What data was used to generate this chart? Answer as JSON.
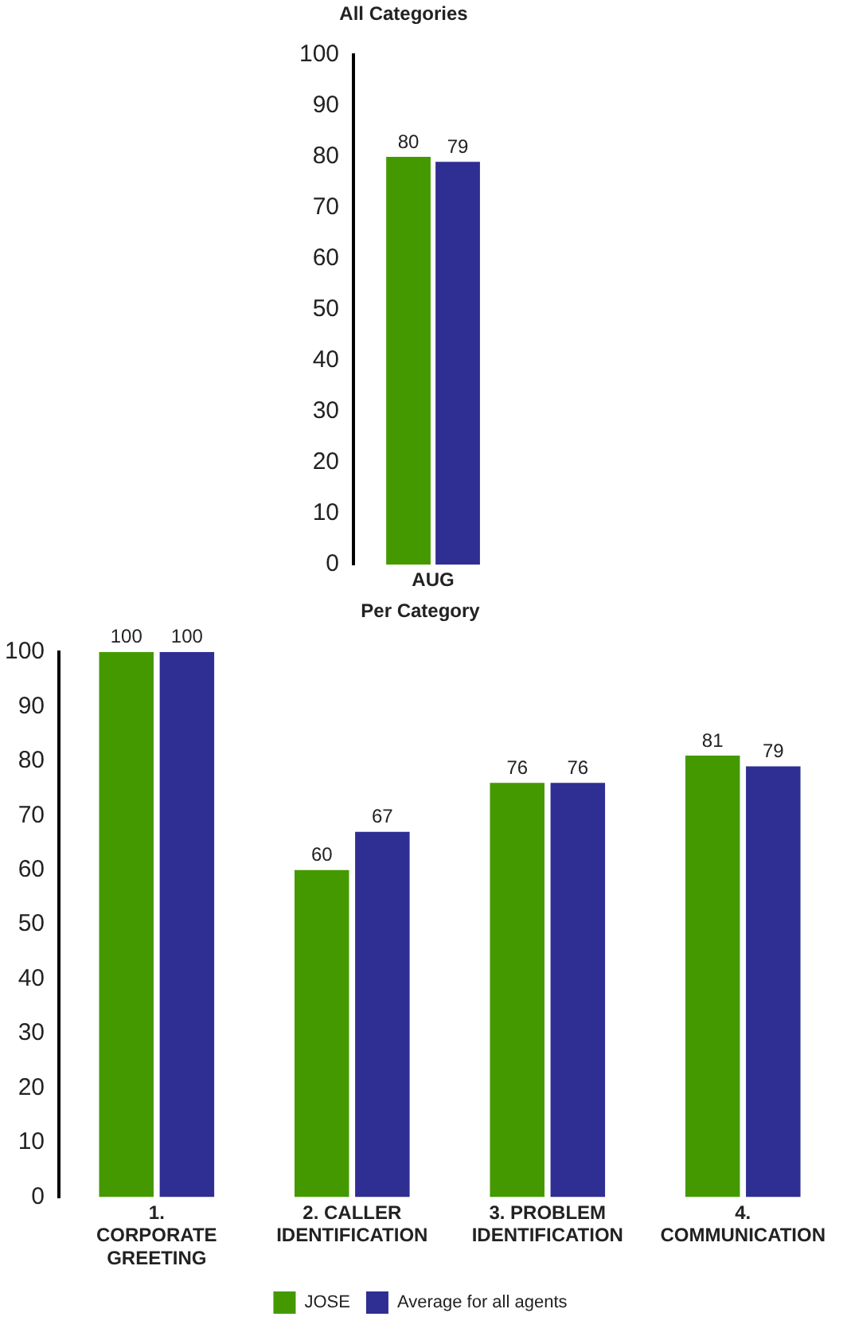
{
  "chart_data": [
    {
      "type": "bar",
      "title": "All Categories",
      "categories": [
        "AUG"
      ],
      "series": [
        {
          "color": "#449900",
          "values": [
            80
          ]
        },
        {
          "color": "#2e2e93",
          "values": [
            79
          ]
        }
      ],
      "ylim": [
        0,
        100
      ],
      "yticks": [
        0,
        10,
        20,
        30,
        40,
        50,
        60,
        70,
        80,
        90,
        100
      ],
      "grid": false,
      "legend": false,
      "data_labels": true
    },
    {
      "type": "bar",
      "title": "Per Category",
      "categories": [
        "1. CORPORATE GREETING",
        "2. CALLER IDENTIFICATION",
        "3. PROBLEM IDENTIFICATION",
        "4. COMMUNICATION"
      ],
      "series": [
        {
          "name": "JOSE",
          "color": "#449900",
          "values": [
            100,
            60,
            76,
            81
          ]
        },
        {
          "name": "Average for all agents",
          "color": "#2e2e93",
          "values": [
            100,
            67,
            76,
            79
          ]
        }
      ],
      "ylim": [
        0,
        100
      ],
      "yticks": [
        0,
        10,
        20,
        30,
        40,
        50,
        60,
        70,
        80,
        90,
        100
      ],
      "grid": false,
      "legend": "bottom",
      "data_labels": true
    }
  ]
}
